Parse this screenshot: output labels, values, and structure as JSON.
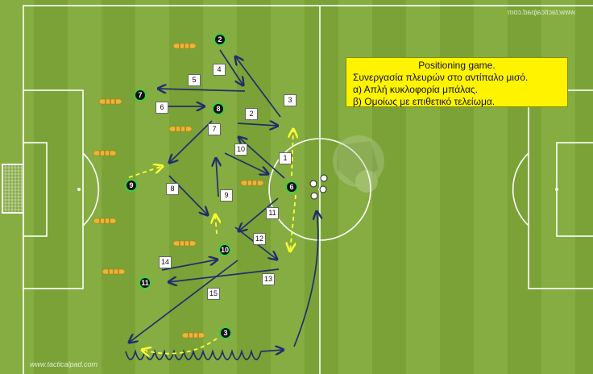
{
  "info_box": {
    "lines": [
      "Positioning game.",
      "Συνεργασία πλευρών στο αντίπαλο μισό.",
      "α) Απλή κυκλοφορία μπάλας.",
      "β) Ομοίως με επιθετικό τελείωμα."
    ]
  },
  "watermarks": {
    "top": "www.tacticalpad.com",
    "bottom": "www.tacticalpad.com"
  },
  "players": [
    {
      "number": "2"
    },
    {
      "number": "7"
    },
    {
      "number": "8"
    },
    {
      "number": "9"
    },
    {
      "number": "6"
    },
    {
      "number": "10"
    },
    {
      "number": "11"
    },
    {
      "number": "3"
    }
  ],
  "sequence_labels": [
    "1",
    "2",
    "3",
    "4",
    "5",
    "6",
    "7",
    "8",
    "9",
    "10",
    "11",
    "12",
    "13",
    "14",
    "15"
  ],
  "colors": {
    "pitch_light": "#86ad41",
    "pitch_dark": "#7aa236",
    "lines": "#ffffff",
    "pass_arrow": "#1f2f6b",
    "run_arrow": "#ffff33",
    "player_ring": "#3fcf3f",
    "dummy": "#e8b63a",
    "box": "#fff300"
  }
}
